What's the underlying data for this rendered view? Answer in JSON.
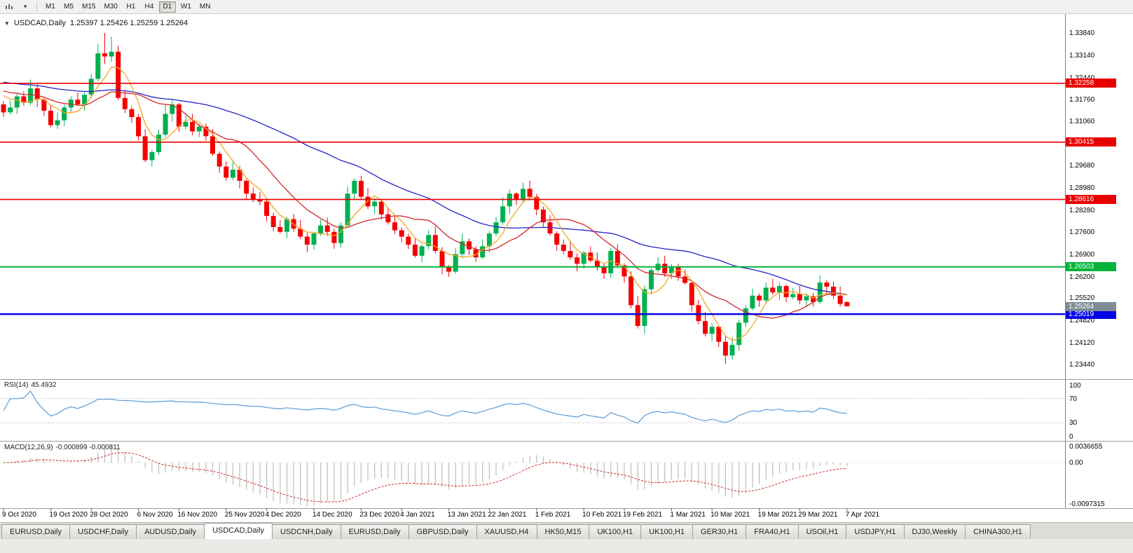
{
  "toolbar": {
    "timeframes": [
      {
        "label": "M1",
        "active": false
      },
      {
        "label": "M5",
        "active": false
      },
      {
        "label": "M15",
        "active": false
      },
      {
        "label": "M30",
        "active": false
      },
      {
        "label": "H1",
        "active": false
      },
      {
        "label": "H4",
        "active": false
      },
      {
        "label": "D1",
        "active": true
      },
      {
        "label": "W1",
        "active": false
      },
      {
        "label": "MN",
        "active": false
      }
    ]
  },
  "chart_data": {
    "type": "candlestick",
    "title": "USDCAD,Daily",
    "ohlc_text": "1.25397 1.25426 1.25259 1.25264",
    "current_bar": {
      "open": 1.25397,
      "high": 1.25426,
      "low": 1.25259,
      "close": 1.25264
    },
    "price_axis_labels": [
      "1.33840",
      "1.33140",
      "1.32440",
      "1.31760",
      "1.31060",
      "1.30380",
      "1.29680",
      "1.28980",
      "1.28280",
      "1.27600",
      "1.26900",
      "1.26200",
      "1.25520",
      "1.24820",
      "1.24120",
      "1.23440"
    ],
    "time_axis_labels": [
      "9 Oct 2020",
      "19 Oct 2020",
      "28 Oct 2020",
      "6 Nov 2020",
      "16 Nov 2020",
      "25 Nov 2020",
      "4 Dec 2020",
      "14 Dec 2020",
      "23 Dec 2020",
      "4 Jan 2021",
      "13 Jan 2021",
      "22 Jan 2021",
      "1 Feb 2021",
      "10 Feb 2021",
      "19 Feb 2021",
      "1 Mar 2021",
      "10 Mar 2021",
      "19 Mar 2021",
      "29 Mar 2021",
      "7 Apr 2021"
    ],
    "colors": {
      "bull": "#00b050",
      "bear": "#f40000",
      "ma_fast": "#f5a623",
      "ma_mid": "#d02828",
      "ma_slow": "#2222c8",
      "rsi": "#5b9bd5",
      "macd_hist": "#bdbdbd",
      "macd_signal": "#d02828"
    },
    "levels": [
      {
        "value": 1.32258,
        "label": "1.32258",
        "color": "#e80000",
        "width": 1.6
      },
      {
        "value": 1.30415,
        "label": "1.30415",
        "color": "#e80000",
        "width": 1.6
      },
      {
        "value": 1.28616,
        "label": "1.28616",
        "color": "#e80000",
        "width": 1.6
      },
      {
        "value": 1.26503,
        "label": "1.26503",
        "color": "#00b43c",
        "width": 2
      },
      {
        "value": 1.25019,
        "label": "1.25019",
        "color": "#0000e8",
        "width": 2.4
      }
    ],
    "current_price_badge": {
      "label": "1.25264",
      "value": 1.25264,
      "bg": "#7f8c98"
    },
    "moving_averages": [
      {
        "period": 40,
        "color_key": "ma_slow"
      },
      {
        "period": 13,
        "color_key": "ma_mid"
      },
      {
        "period": 5,
        "color_key": "ma_fast"
      }
    ],
    "rsi": {
      "name": "RSI(14)",
      "value": "45.4932",
      "period": 14,
      "axis": [
        {
          "v": 100,
          "label": "100"
        },
        {
          "v": 70,
          "label": "70"
        },
        {
          "v": 30,
          "label": "30"
        },
        {
          "v": 0,
          "label": "0"
        }
      ],
      "guides": [
        70,
        30
      ]
    },
    "macd": {
      "name": "MACD(12,26,9)",
      "values": "-0.000899 -0.000811",
      "fast": 12,
      "slow": 26,
      "signal": 9,
      "axis": [
        {
          "v": 0.0036655,
          "label": "0.0036655"
        },
        {
          "v": 0,
          "label": "0.00"
        },
        {
          "v": -0.0097315,
          "label": "-0.0097315"
        }
      ]
    },
    "candles": [
      [
        1.316,
        1.317,
        1.3121,
        1.3135
      ],
      [
        1.3135,
        1.3172,
        1.3129,
        1.315
      ],
      [
        1.315,
        1.3192,
        1.313,
        1.3185
      ],
      [
        1.3185,
        1.3201,
        1.3155,
        1.3165
      ],
      [
        1.3165,
        1.3238,
        1.3157,
        1.321
      ],
      [
        1.321,
        1.3222,
        1.3151,
        1.3175
      ],
      [
        1.3175,
        1.318,
        1.3124,
        1.314
      ],
      [
        1.314,
        1.3159,
        1.3088,
        1.3095
      ],
      [
        1.3095,
        1.3135,
        1.3083,
        1.311
      ],
      [
        1.311,
        1.3159,
        1.3092,
        1.315
      ],
      [
        1.315,
        1.3185,
        1.3136,
        1.3175
      ],
      [
        1.3175,
        1.3197,
        1.3154,
        1.316
      ],
      [
        1.316,
        1.3197,
        1.314,
        1.319
      ],
      [
        1.319,
        1.3256,
        1.318,
        1.324
      ],
      [
        1.324,
        1.3348,
        1.3232,
        1.332
      ],
      [
        1.332,
        1.3384,
        1.3286,
        1.331
      ],
      [
        1.331,
        1.3372,
        1.3294,
        1.3325
      ],
      [
        1.3325,
        1.3344,
        1.3173,
        1.318
      ],
      [
        1.318,
        1.3205,
        1.3133,
        1.3145
      ],
      [
        1.3145,
        1.3154,
        1.3102,
        1.312
      ],
      [
        1.312,
        1.313,
        1.3046,
        1.306
      ],
      [
        1.306,
        1.3082,
        1.2979,
        1.2985
      ],
      [
        1.2985,
        1.3017,
        1.2965,
        1.301
      ],
      [
        1.301,
        1.3081,
        1.3,
        1.3065
      ],
      [
        1.3065,
        1.3158,
        1.3057,
        1.313
      ],
      [
        1.313,
        1.3172,
        1.3106,
        1.316
      ],
      [
        1.316,
        1.3165,
        1.3074,
        1.309
      ],
      [
        1.309,
        1.3124,
        1.3083,
        1.3105
      ],
      [
        1.3105,
        1.313,
        1.3063,
        1.3075
      ],
      [
        1.3075,
        1.3099,
        1.3057,
        1.309
      ],
      [
        1.309,
        1.31,
        1.3046,
        1.306
      ],
      [
        1.306,
        1.3082,
        1.2999,
        1.3005
      ],
      [
        1.3005,
        1.3012,
        1.2945,
        1.2965
      ],
      [
        1.2965,
        1.2981,
        1.292,
        1.293
      ],
      [
        1.293,
        1.2983,
        1.2922,
        1.2955
      ],
      [
        1.2955,
        1.2967,
        1.2896,
        1.292
      ],
      [
        1.292,
        1.2925,
        1.2864,
        1.288
      ],
      [
        1.288,
        1.2899,
        1.2853,
        1.286
      ],
      [
        1.286,
        1.2885,
        1.2843,
        1.2855
      ],
      [
        1.2855,
        1.2864,
        1.2792,
        1.281
      ],
      [
        1.281,
        1.282,
        1.2761,
        1.2775
      ],
      [
        1.2775,
        1.2797,
        1.2754,
        1.276
      ],
      [
        1.276,
        1.2807,
        1.274,
        1.28
      ],
      [
        1.28,
        1.2816,
        1.276,
        1.277
      ],
      [
        1.277,
        1.2798,
        1.2737,
        1.2745
      ],
      [
        1.2745,
        1.2757,
        1.2696,
        1.272
      ],
      [
        1.272,
        1.276,
        1.2704,
        1.2755
      ],
      [
        1.2755,
        1.2799,
        1.2748,
        1.278
      ],
      [
        1.278,
        1.2805,
        1.2748,
        1.276
      ],
      [
        1.276,
        1.2769,
        1.2707,
        1.2725
      ],
      [
        1.2725,
        1.279,
        1.2711,
        1.278
      ],
      [
        1.278,
        1.2902,
        1.2774,
        1.288
      ],
      [
        1.288,
        1.2927,
        1.286,
        1.292
      ],
      [
        1.292,
        1.2936,
        1.286,
        1.287
      ],
      [
        1.287,
        1.2898,
        1.2832,
        1.284
      ],
      [
        1.284,
        1.2867,
        1.2816,
        1.2855
      ],
      [
        1.2855,
        1.286,
        1.2799,
        1.2815
      ],
      [
        1.2815,
        1.2834,
        1.2783,
        1.279
      ],
      [
        1.279,
        1.2815,
        1.2753,
        1.2765
      ],
      [
        1.2765,
        1.2774,
        1.2727,
        1.2745
      ],
      [
        1.2745,
        1.2755,
        1.2706,
        1.272
      ],
      [
        1.272,
        1.2742,
        1.2679,
        1.2685
      ],
      [
        1.2685,
        1.2722,
        1.2665,
        1.2715
      ],
      [
        1.2715,
        1.2766,
        1.2705,
        1.275
      ],
      [
        1.275,
        1.2778,
        1.2692,
        1.27
      ],
      [
        1.27,
        1.2712,
        1.2626,
        1.265
      ],
      [
        1.265,
        1.2655,
        1.2619,
        1.2635
      ],
      [
        1.2635,
        1.2709,
        1.2628,
        1.269
      ],
      [
        1.269,
        1.2755,
        1.2678,
        1.273
      ],
      [
        1.273,
        1.2739,
        1.2687,
        1.2705
      ],
      [
        1.2705,
        1.2715,
        1.2666,
        1.268
      ],
      [
        1.268,
        1.2737,
        1.2674,
        1.2715
      ],
      [
        1.2715,
        1.2762,
        1.2695,
        1.2755
      ],
      [
        1.2755,
        1.2806,
        1.2745,
        1.279
      ],
      [
        1.279,
        1.2868,
        1.2782,
        1.284
      ],
      [
        1.284,
        1.2892,
        1.2816,
        1.288
      ],
      [
        1.288,
        1.2885,
        1.2844,
        1.286
      ],
      [
        1.286,
        1.2914,
        1.2853,
        1.2895
      ],
      [
        1.2895,
        1.292,
        1.2858,
        1.287
      ],
      [
        1.287,
        1.2879,
        1.2812,
        1.283
      ],
      [
        1.283,
        1.284,
        1.2776,
        1.279
      ],
      [
        1.279,
        1.2812,
        1.2749,
        1.2755
      ],
      [
        1.2755,
        1.2762,
        1.27,
        1.272
      ],
      [
        1.272,
        1.2736,
        1.269,
        1.27
      ],
      [
        1.27,
        1.2728,
        1.2672,
        1.268
      ],
      [
        1.268,
        1.2692,
        1.2636,
        1.266
      ],
      [
        1.266,
        1.27,
        1.2644,
        1.2695
      ],
      [
        1.2695,
        1.2714,
        1.2663,
        1.267
      ],
      [
        1.267,
        1.2695,
        1.2638,
        1.265
      ],
      [
        1.265,
        1.2659,
        1.2612,
        1.263
      ],
      [
        1.263,
        1.271,
        1.2616,
        1.27
      ],
      [
        1.27,
        1.2722,
        1.2649,
        1.2655
      ],
      [
        1.2655,
        1.2662,
        1.26,
        1.262
      ],
      [
        1.262,
        1.2636,
        1.252,
        1.253
      ],
      [
        1.253,
        1.2558,
        1.2457,
        1.2465
      ],
      [
        1.2465,
        1.2592,
        1.2441,
        1.258
      ],
      [
        1.258,
        1.2645,
        1.2564,
        1.264
      ],
      [
        1.264,
        1.2679,
        1.2633,
        1.266
      ],
      [
        1.266,
        1.2685,
        1.2618,
        1.263
      ],
      [
        1.263,
        1.2659,
        1.2612,
        1.265
      ],
      [
        1.265,
        1.266,
        1.2606,
        1.262
      ],
      [
        1.262,
        1.2642,
        1.2594,
        1.26
      ],
      [
        1.26,
        1.2607,
        1.251,
        1.253
      ],
      [
        1.253,
        1.2546,
        1.247,
        1.248
      ],
      [
        1.248,
        1.2508,
        1.2432,
        1.244
      ],
      [
        1.244,
        1.2474,
        1.2416,
        1.2462
      ],
      [
        1.2462,
        1.2467,
        1.2399,
        1.2415
      ],
      [
        1.2415,
        1.2434,
        1.2345,
        1.2372
      ],
      [
        1.2372,
        1.243,
        1.236,
        1.2405
      ],
      [
        1.2405,
        1.2484,
        1.2387,
        1.2475
      ],
      [
        1.2475,
        1.253,
        1.2461,
        1.252
      ],
      [
        1.252,
        1.2582,
        1.2514,
        1.256
      ],
      [
        1.256,
        1.2567,
        1.2525,
        1.2545
      ],
      [
        1.2545,
        1.2601,
        1.2535,
        1.2585
      ],
      [
        1.2585,
        1.2613,
        1.2562,
        1.257
      ],
      [
        1.257,
        1.2602,
        1.2546,
        1.259
      ],
      [
        1.259,
        1.2595,
        1.2539,
        1.2555
      ],
      [
        1.2555,
        1.2584,
        1.2548,
        1.2565
      ],
      [
        1.2565,
        1.259,
        1.2533,
        1.2545
      ],
      [
        1.2545,
        1.2567,
        1.2527,
        1.2558
      ],
      [
        1.2558,
        1.2568,
        1.2526,
        1.254
      ],
      [
        1.254,
        1.2623,
        1.2534,
        1.2601
      ],
      [
        1.2601,
        1.2608,
        1.2568,
        1.2588
      ],
      [
        1.2588,
        1.2604,
        1.255,
        1.256
      ],
      [
        1.256,
        1.2588,
        1.2526,
        1.2534
      ],
      [
        1.25397,
        1.25426,
        1.25259,
        1.25264
      ]
    ]
  },
  "tabs": [
    {
      "label": "EURUSD,Daily",
      "active": false
    },
    {
      "label": "USDCHF,Daily",
      "active": false
    },
    {
      "label": "AUDUSD,Daily",
      "active": false
    },
    {
      "label": "USDCAD,Daily",
      "active": true
    },
    {
      "label": "USDCNH,Daily",
      "active": false
    },
    {
      "label": "EURUSD,Daily",
      "active": false
    },
    {
      "label": "GBPUSD,Daily",
      "active": false
    },
    {
      "label": "XAUUSD,H4",
      "active": false
    },
    {
      "label": "HK50,M15",
      "active": false
    },
    {
      "label": "UK100,H1",
      "active": false
    },
    {
      "label": "UK100,H1",
      "active": false
    },
    {
      "label": "GER30,H1",
      "active": false
    },
    {
      "label": "FRA40,H1",
      "active": false
    },
    {
      "label": "USOil,H1",
      "active": false
    },
    {
      "label": "USDJPY,H1",
      "active": false
    },
    {
      "label": "DJ30,Weekly",
      "active": false
    },
    {
      "label": "CHINA300,H1",
      "active": false
    }
  ]
}
